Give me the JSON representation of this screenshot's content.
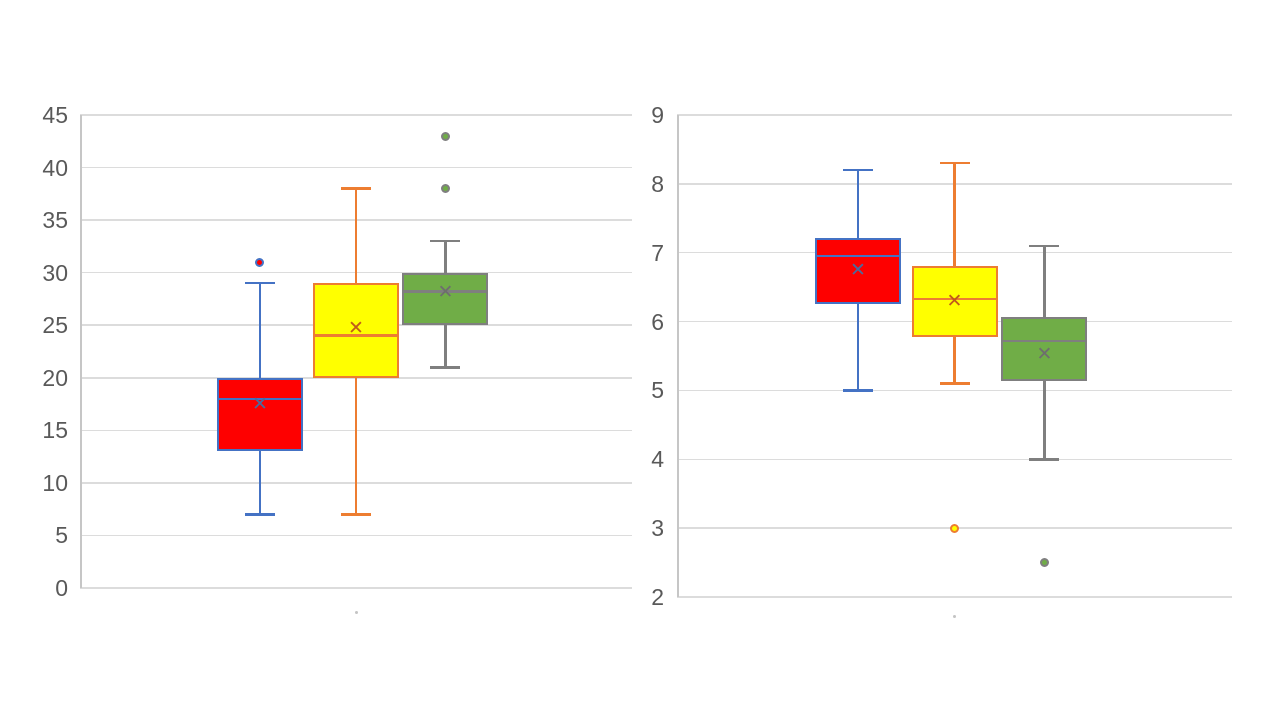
{
  "page": {
    "background": "#ffffff"
  },
  "colors": {
    "grid": "#dcdcdc",
    "axis": "#c6c6c6",
    "tick_label": "#595959",
    "category_dot": "#c4c4c4"
  },
  "chart_data": [
    {
      "type": "boxplot",
      "title": "",
      "xlabel": "",
      "ylabel": "",
      "categories": [
        "."
      ],
      "ylim": [
        0,
        45
      ],
      "ytick_step": 5,
      "yticks": [
        45,
        40,
        35,
        30,
        25,
        20,
        15,
        10,
        5,
        0
      ],
      "grid": true,
      "legend": "none",
      "series_centers": [
        0.326,
        0.5,
        0.662
      ],
      "series": [
        {
          "name": "series-1-red",
          "fill": "#fe0000",
          "line": "#4472c4",
          "mean_color": "#4a6b9f",
          "whisker_low": 7,
          "q1": 13,
          "median": 18,
          "mean": 17.4,
          "q3": 20,
          "whisker_high": 29,
          "outliers": [
            31
          ]
        },
        {
          "name": "series-2-yellow",
          "fill": "#ffff00",
          "line": "#ed7d31",
          "mean_color": "#c05b1a",
          "whisker_low": 7,
          "q1": 20,
          "median": 24,
          "mean": 24.6,
          "q3": 29,
          "whisker_high": 38,
          "outliers": []
        },
        {
          "name": "series-3-green",
          "fill": "#70ad47",
          "line": "#7f7f7f",
          "mean_color": "#6e6e6e",
          "whisker_low": 21,
          "q1": 25,
          "median": 28.2,
          "mean": 28.1,
          "q3": 30,
          "whisker_high": 33,
          "outliers": [
            38,
            43
          ]
        }
      ]
    },
    {
      "type": "boxplot",
      "title": "",
      "xlabel": "",
      "ylabel": "",
      "categories": [
        "."
      ],
      "ylim": [
        2,
        9
      ],
      "ytick_step": 1,
      "yticks": [
        9,
        8,
        7,
        6,
        5,
        4,
        3,
        2
      ],
      "grid": true,
      "legend": "none",
      "series_centers": [
        0.326,
        0.5,
        0.662
      ],
      "series": [
        {
          "name": "series-1-red",
          "fill": "#fe0000",
          "line": "#4472c4",
          "mean_color": "#4a6b9f",
          "whisker_low": 5.0,
          "q1": 6.25,
          "median": 6.95,
          "mean": 6.74,
          "q3": 7.22,
          "whisker_high": 8.2,
          "outliers": []
        },
        {
          "name": "series-2-yellow",
          "fill": "#ffff00",
          "line": "#ed7d31",
          "mean_color": "#c05b1a",
          "whisker_low": 5.1,
          "q1": 5.78,
          "median": 6.33,
          "mean": 6.28,
          "q3": 6.8,
          "whisker_high": 8.3,
          "outliers": [
            3
          ]
        },
        {
          "name": "series-3-green",
          "fill": "#70ad47",
          "line": "#7f7f7f",
          "mean_color": "#6e6e6e",
          "whisker_low": 4.0,
          "q1": 5.13,
          "median": 5.72,
          "mean": 5.52,
          "q3": 6.06,
          "whisker_high": 7.1,
          "outliers": [
            2.5
          ]
        }
      ]
    }
  ]
}
